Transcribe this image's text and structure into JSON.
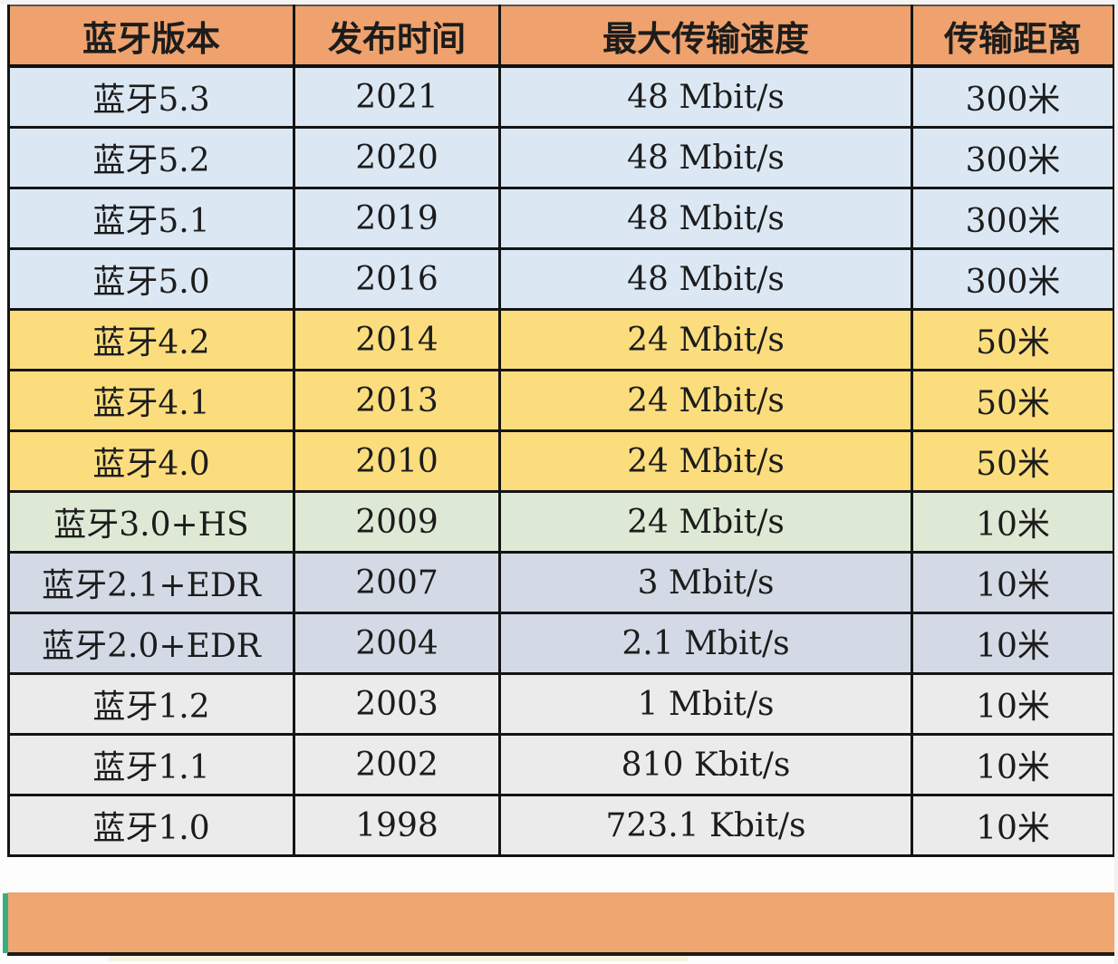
{
  "chart_data": {
    "type": "table",
    "title": "",
    "columns": [
      "蓝牙版本",
      "发布时间",
      "最大传输速度",
      "传输距离"
    ],
    "rows": [
      [
        "蓝牙5.3",
        "2021",
        "48 Mbit/s",
        "300米"
      ],
      [
        "蓝牙5.2",
        "2020",
        "48 Mbit/s",
        "300米"
      ],
      [
        "蓝牙5.1",
        "2019",
        "48 Mbit/s",
        "300米"
      ],
      [
        "蓝牙5.0",
        "2016",
        "48 Mbit/s",
        "300米"
      ],
      [
        "蓝牙4.2",
        "2014",
        "24 Mbit/s",
        "50米"
      ],
      [
        "蓝牙4.1",
        "2013",
        "24 Mbit/s",
        "50米"
      ],
      [
        "蓝牙4.0",
        "2010",
        "24 Mbit/s",
        "50米"
      ],
      [
        "蓝牙3.0+HS",
        "2009",
        "24 Mbit/s",
        "10米"
      ],
      [
        "蓝牙2.1+EDR",
        "2007",
        "3 Mbit/s",
        "10米"
      ],
      [
        "蓝牙2.0+EDR",
        "2004",
        "2.1 Mbit/s",
        "10米"
      ],
      [
        "蓝牙1.2",
        "2003",
        "1 Mbit/s",
        "10米"
      ],
      [
        "蓝牙1.1",
        "2002",
        "810 Kbit/s",
        "10米"
      ],
      [
        "蓝牙1.0",
        "1998",
        "723.1 Kbit/s",
        "10米"
      ]
    ]
  },
  "row_styles": [
    {
      "band": "blue",
      "bold_year": true
    },
    {
      "band": "blue"
    },
    {
      "band": "blue"
    },
    {
      "band": "blue"
    },
    {
      "band": "yellow"
    },
    {
      "band": "yellow"
    },
    {
      "band": "yellow"
    },
    {
      "band": "green"
    },
    {
      "band": "grayblue"
    },
    {
      "band": "grayblue"
    },
    {
      "band": "gray"
    },
    {
      "band": "gray"
    },
    {
      "band": "gray"
    }
  ],
  "colors": {
    "header_bg": "#efa26d",
    "blue": "#dbe8f4",
    "yellow": "#fcdd7e",
    "green": "#dee9d5",
    "grayblue": "#d3dae5",
    "gray": "#ebebeb",
    "footer_bar": "#efa671",
    "accent_green": "#3bae7d",
    "border": "#141414"
  }
}
